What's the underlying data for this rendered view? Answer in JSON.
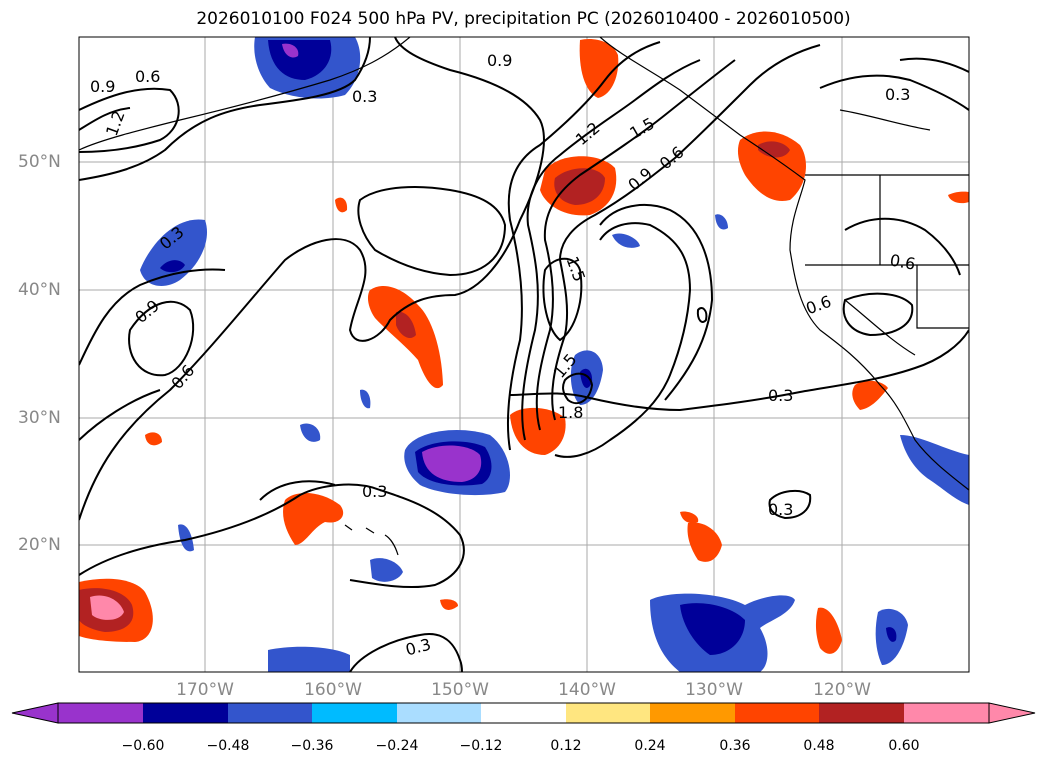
{
  "title": "2026010100 F024 500 hPa PV, precipitation PC (2026010400 - 2026010500)",
  "lat_labels": [
    "50°N",
    "40°N",
    "30°N",
    "20°N"
  ],
  "lon_labels": [
    "170°W",
    "160°W",
    "150°W",
    "140°W",
    "130°W",
    "120°W"
  ],
  "contour_labels": [
    "0.9",
    "0.6",
    "1.2",
    "0.3",
    "0.9",
    "1.2",
    "1.5",
    "0.9",
    "0.6",
    "0.3",
    "0.3",
    "0.9",
    "0.6",
    "1.5",
    "1.5",
    "1.8",
    "0.6",
    "0.6",
    "0.3",
    "0.3",
    "0.3",
    "0.3"
  ],
  "colorbar": {
    "tick_labels": [
      "−0.60",
      "−0.48",
      "−0.36",
      "−0.24",
      "−0.12",
      "0.12",
      "0.24",
      "0.36",
      "0.48",
      "0.60"
    ],
    "colors": [
      "#9933cc",
      "#000099",
      "#3355cc",
      "#00bbff",
      "#aaddff",
      "#ffffff",
      "#ffe680",
      "#ff9900",
      "#ff4400",
      "#b22222",
      "#ff88aa"
    ]
  },
  "colors": {
    "land_outline": "#000000",
    "gridline": "#aaaaaa",
    "contour": "#000000"
  }
}
